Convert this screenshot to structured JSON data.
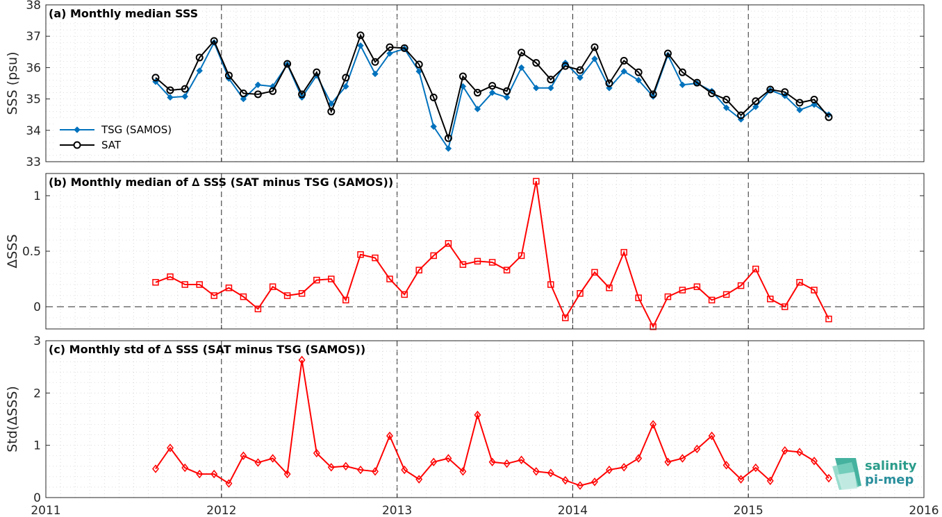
{
  "figure": {
    "x_ticks": [
      "2011",
      "2012",
      "2013",
      "2014",
      "2015",
      "2016"
    ],
    "logo": {
      "line1": "salinity",
      "line2": "pi-mep"
    }
  },
  "chart_data": [
    {
      "type": "line",
      "title": "(a) Monthly median SSS",
      "xlabel": "",
      "ylabel": "SSS (psu)",
      "xlim": [
        2011,
        2016
      ],
      "ylim": [
        33,
        38
      ],
      "yticks": [
        "33",
        "34",
        "35",
        "36",
        "37",
        "38"
      ],
      "grid": true,
      "legend": "left",
      "x": [
        2011.625,
        2011.708,
        2011.792,
        2011.875,
        2011.958,
        2012.042,
        2012.125,
        2012.208,
        2012.292,
        2012.375,
        2012.458,
        2012.542,
        2012.625,
        2012.708,
        2012.792,
        2012.875,
        2012.958,
        2013.042,
        2013.125,
        2013.208,
        2013.292,
        2013.375,
        2013.458,
        2013.542,
        2013.625,
        2013.708,
        2013.792,
        2013.875,
        2013.958,
        2014.042,
        2014.125,
        2014.208,
        2014.292,
        2014.375,
        2014.458,
        2014.542,
        2014.625,
        2014.708,
        2014.792,
        2014.875,
        2014.958,
        2015.042,
        2015.125,
        2015.208,
        2015.292,
        2015.375,
        2015.458
      ],
      "series": [
        {
          "name": "TSG (SAMOS)",
          "color": "#0072bd",
          "marker": "diamond",
          "values": [
            35.55,
            35.05,
            35.08,
            35.9,
            36.8,
            35.65,
            35.0,
            35.45,
            35.4,
            36.1,
            35.05,
            35.75,
            34.85,
            35.4,
            36.7,
            35.8,
            36.45,
            36.6,
            35.88,
            34.12,
            33.42,
            35.4,
            34.68,
            35.2,
            35.05,
            36.0,
            35.35,
            35.35,
            36.15,
            35.68,
            36.28,
            35.35,
            35.88,
            35.6,
            35.08,
            36.4,
            35.45,
            35.5,
            35.25,
            34.72,
            34.35,
            34.75,
            35.28,
            35.1,
            34.65,
            34.82,
            34.5
          ]
        },
        {
          "name": "SAT",
          "color": "#000000",
          "marker": "circle",
          "values": [
            35.68,
            35.28,
            35.32,
            36.32,
            36.85,
            35.75,
            35.18,
            35.15,
            35.25,
            36.12,
            35.15,
            35.85,
            34.6,
            35.68,
            37.03,
            36.18,
            36.65,
            36.62,
            36.1,
            35.05,
            33.75,
            35.72,
            35.2,
            35.42,
            35.25,
            36.48,
            36.15,
            35.62,
            36.05,
            35.92,
            36.65,
            35.5,
            36.22,
            35.85,
            35.15,
            36.45,
            35.85,
            35.52,
            35.18,
            34.98,
            34.48,
            34.93,
            35.3,
            35.22,
            34.88,
            34.98,
            34.42
          ]
        }
      ]
    },
    {
      "type": "line",
      "title": "(b) Monthly median of ∆ SSS (SAT minus TSG (SAMOS))",
      "xlabel": "",
      "ylabel": "ΔSSS",
      "xlim": [
        2011,
        2016
      ],
      "ylim": [
        -0.2,
        1.2
      ],
      "yticks": [
        "0",
        "0.5",
        "1"
      ],
      "ytick_values": [
        0,
        0.5,
        1
      ],
      "reference_line": 0,
      "grid": true,
      "x": [
        2011.625,
        2011.708,
        2011.792,
        2011.875,
        2011.958,
        2012.042,
        2012.125,
        2012.208,
        2012.292,
        2012.375,
        2012.458,
        2012.542,
        2012.625,
        2012.708,
        2012.792,
        2012.875,
        2012.958,
        2013.042,
        2013.125,
        2013.208,
        2013.292,
        2013.375,
        2013.458,
        2013.542,
        2013.625,
        2013.708,
        2013.792,
        2013.875,
        2013.958,
        2014.042,
        2014.125,
        2014.208,
        2014.292,
        2014.375,
        2014.458,
        2014.542,
        2014.625,
        2014.708,
        2014.792,
        2014.875,
        2014.958,
        2015.042,
        2015.125,
        2015.208,
        2015.292,
        2015.375,
        2015.458
      ],
      "series": [
        {
          "name": "",
          "color": "#ff0000",
          "marker": "square",
          "values": [
            0.22,
            0.27,
            0.2,
            0.2,
            0.1,
            0.17,
            0.09,
            -0.02,
            0.18,
            0.1,
            0.12,
            0.24,
            0.25,
            0.06,
            0.47,
            0.44,
            0.25,
            0.11,
            0.33,
            0.46,
            0.57,
            0.38,
            0.41,
            0.4,
            0.33,
            0.46,
            1.13,
            0.2,
            -0.1,
            0.12,
            0.31,
            0.17,
            0.49,
            0.08,
            -0.18,
            0.09,
            0.15,
            0.18,
            0.06,
            0.11,
            0.19,
            0.34,
            0.07,
            0.0,
            0.22,
            0.15,
            -0.11
          ]
        }
      ]
    },
    {
      "type": "line",
      "title": "(c) Monthly std of ∆ SSS (SAT minus TSG (SAMOS))",
      "xlabel": "",
      "ylabel": "Std(ΔSSS)",
      "xlim": [
        2011,
        2016
      ],
      "ylim": [
        0,
        3
      ],
      "yticks": [
        "0",
        "1",
        "2",
        "3"
      ],
      "grid": true,
      "x": [
        2011.625,
        2011.708,
        2011.792,
        2011.875,
        2011.958,
        2012.042,
        2012.125,
        2012.208,
        2012.292,
        2012.375,
        2012.458,
        2012.542,
        2012.625,
        2012.708,
        2012.792,
        2012.875,
        2012.958,
        2013.042,
        2013.125,
        2013.208,
        2013.292,
        2013.375,
        2013.458,
        2013.542,
        2013.625,
        2013.708,
        2013.792,
        2013.875,
        2013.958,
        2014.042,
        2014.125,
        2014.208,
        2014.292,
        2014.375,
        2014.458,
        2014.542,
        2014.625,
        2014.708,
        2014.792,
        2014.875,
        2014.958,
        2015.042,
        2015.125,
        2015.208,
        2015.292,
        2015.375,
        2015.458
      ],
      "series": [
        {
          "name": "",
          "color": "#ff0000",
          "marker": "diamond",
          "values": [
            0.55,
            0.95,
            0.57,
            0.45,
            0.45,
            0.27,
            0.8,
            0.67,
            0.75,
            0.45,
            2.63,
            0.85,
            0.58,
            0.6,
            0.53,
            0.5,
            1.18,
            0.53,
            0.35,
            0.68,
            0.75,
            0.5,
            1.58,
            0.68,
            0.65,
            0.72,
            0.5,
            0.47,
            0.33,
            0.23,
            0.3,
            0.53,
            0.58,
            0.75,
            1.4,
            0.68,
            0.75,
            0.93,
            1.18,
            0.62,
            0.35,
            0.57,
            0.32,
            0.9,
            0.87,
            0.7,
            0.37
          ]
        }
      ]
    }
  ]
}
